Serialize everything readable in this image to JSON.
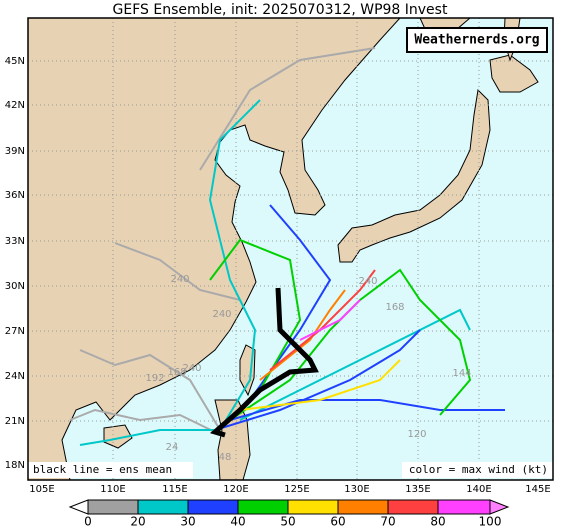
{
  "title": "GEFS Ensemble, init: 2025070312, WP98 Invest",
  "watermark": "Weathernerds.org",
  "lat_labels": [
    "45N",
    "42N",
    "39N",
    "36N",
    "33N",
    "30N",
    "27N",
    "24N",
    "21N",
    "18N"
  ],
  "lon_labels": [
    "105E",
    "110E",
    "115E",
    "120E",
    "125E",
    "130E",
    "135E",
    "140E",
    "145E"
  ],
  "mean_note": "black line = ens mean",
  "color_note": "color = max wind (kt)",
  "scale_labels": [
    0,
    20,
    30,
    40,
    50,
    60,
    70,
    80,
    100
  ],
  "track_labels": [
    "240",
    "240",
    "240",
    "168",
    "144",
    "120",
    "192",
    "168",
    "240",
    "48",
    "24"
  ]
}
